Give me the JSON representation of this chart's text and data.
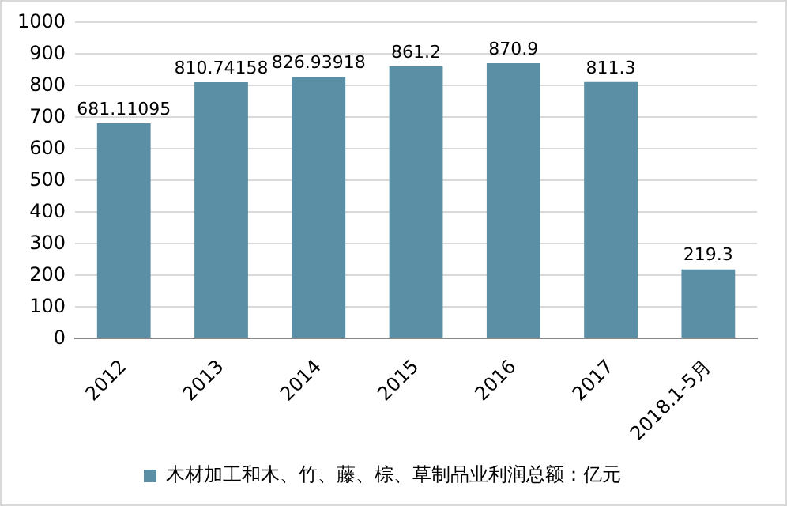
{
  "chart_data": {
    "type": "bar",
    "categories": [
      "2012",
      "2013",
      "2014",
      "2015",
      "2016",
      "2017",
      "2018.1-5月"
    ],
    "series": [
      {
        "name": "木材加工和木、竹、藤、棕、草制品业利润总额：亿元",
        "color": "#5b8fa6",
        "values": [
          681.11095,
          810.74158,
          826.93918,
          861.2,
          870.9,
          811.3,
          219.3
        ]
      }
    ],
    "ylim": [
      0,
      1000
    ],
    "yticks": [
      0,
      100,
      200,
      300,
      400,
      500,
      600,
      700,
      800,
      900,
      1000
    ],
    "grid": "y",
    "legend": "bottom",
    "data_labels": true
  }
}
